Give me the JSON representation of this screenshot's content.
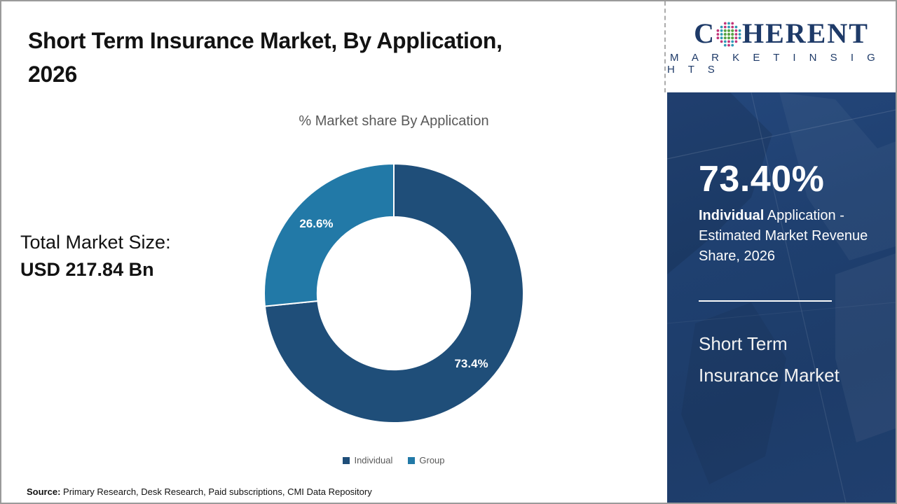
{
  "window": {
    "border_color": "#9a9a9a",
    "background": "#ffffff"
  },
  "header": {
    "title_line1": "Short Term Insurance Market, By Application,",
    "title_line2": "2026"
  },
  "brand": {
    "letter_c": "C",
    "name_rest": "HERENT",
    "tagline": "M A R K E T   I N S I G H T S",
    "color": "#1e3a68",
    "globe_dot_inner_color": "#57a445",
    "globe_dot_ring_color_a": "#c23579",
    "globe_dot_ring_color_b": "#2e9ab5"
  },
  "stats_left": {
    "label": "Total Market Size:",
    "value": "USD 217.84 Bn"
  },
  "chart_data": {
    "type": "pie",
    "donut": true,
    "title": "% Market share By Application",
    "categories": [
      "Individual",
      "Group"
    ],
    "values": [
      73.4,
      26.6
    ],
    "slice_labels": [
      "73.4%",
      "26.6%"
    ],
    "colors": [
      "#1F4E79",
      "#2279A7"
    ],
    "start_angle_deg": 0,
    "direction": "clockwise",
    "inner_radius_ratio": 0.59,
    "slice_label_color": "#ffffff",
    "legend_position": "bottom",
    "legend_text_color": "#595959"
  },
  "side_panel": {
    "background": "#1f4070",
    "stat_value": "73.40%",
    "stat_bold": "Individual",
    "stat_rest": " Application - Estimated Market Revenue Share, 2026",
    "market_line1": "Short Term",
    "market_line2": "Insurance Market"
  },
  "footer": {
    "source_label": "Source:",
    "source_text": " Primary Research, Desk Research, Paid subscriptions, CMI Data Repository"
  }
}
